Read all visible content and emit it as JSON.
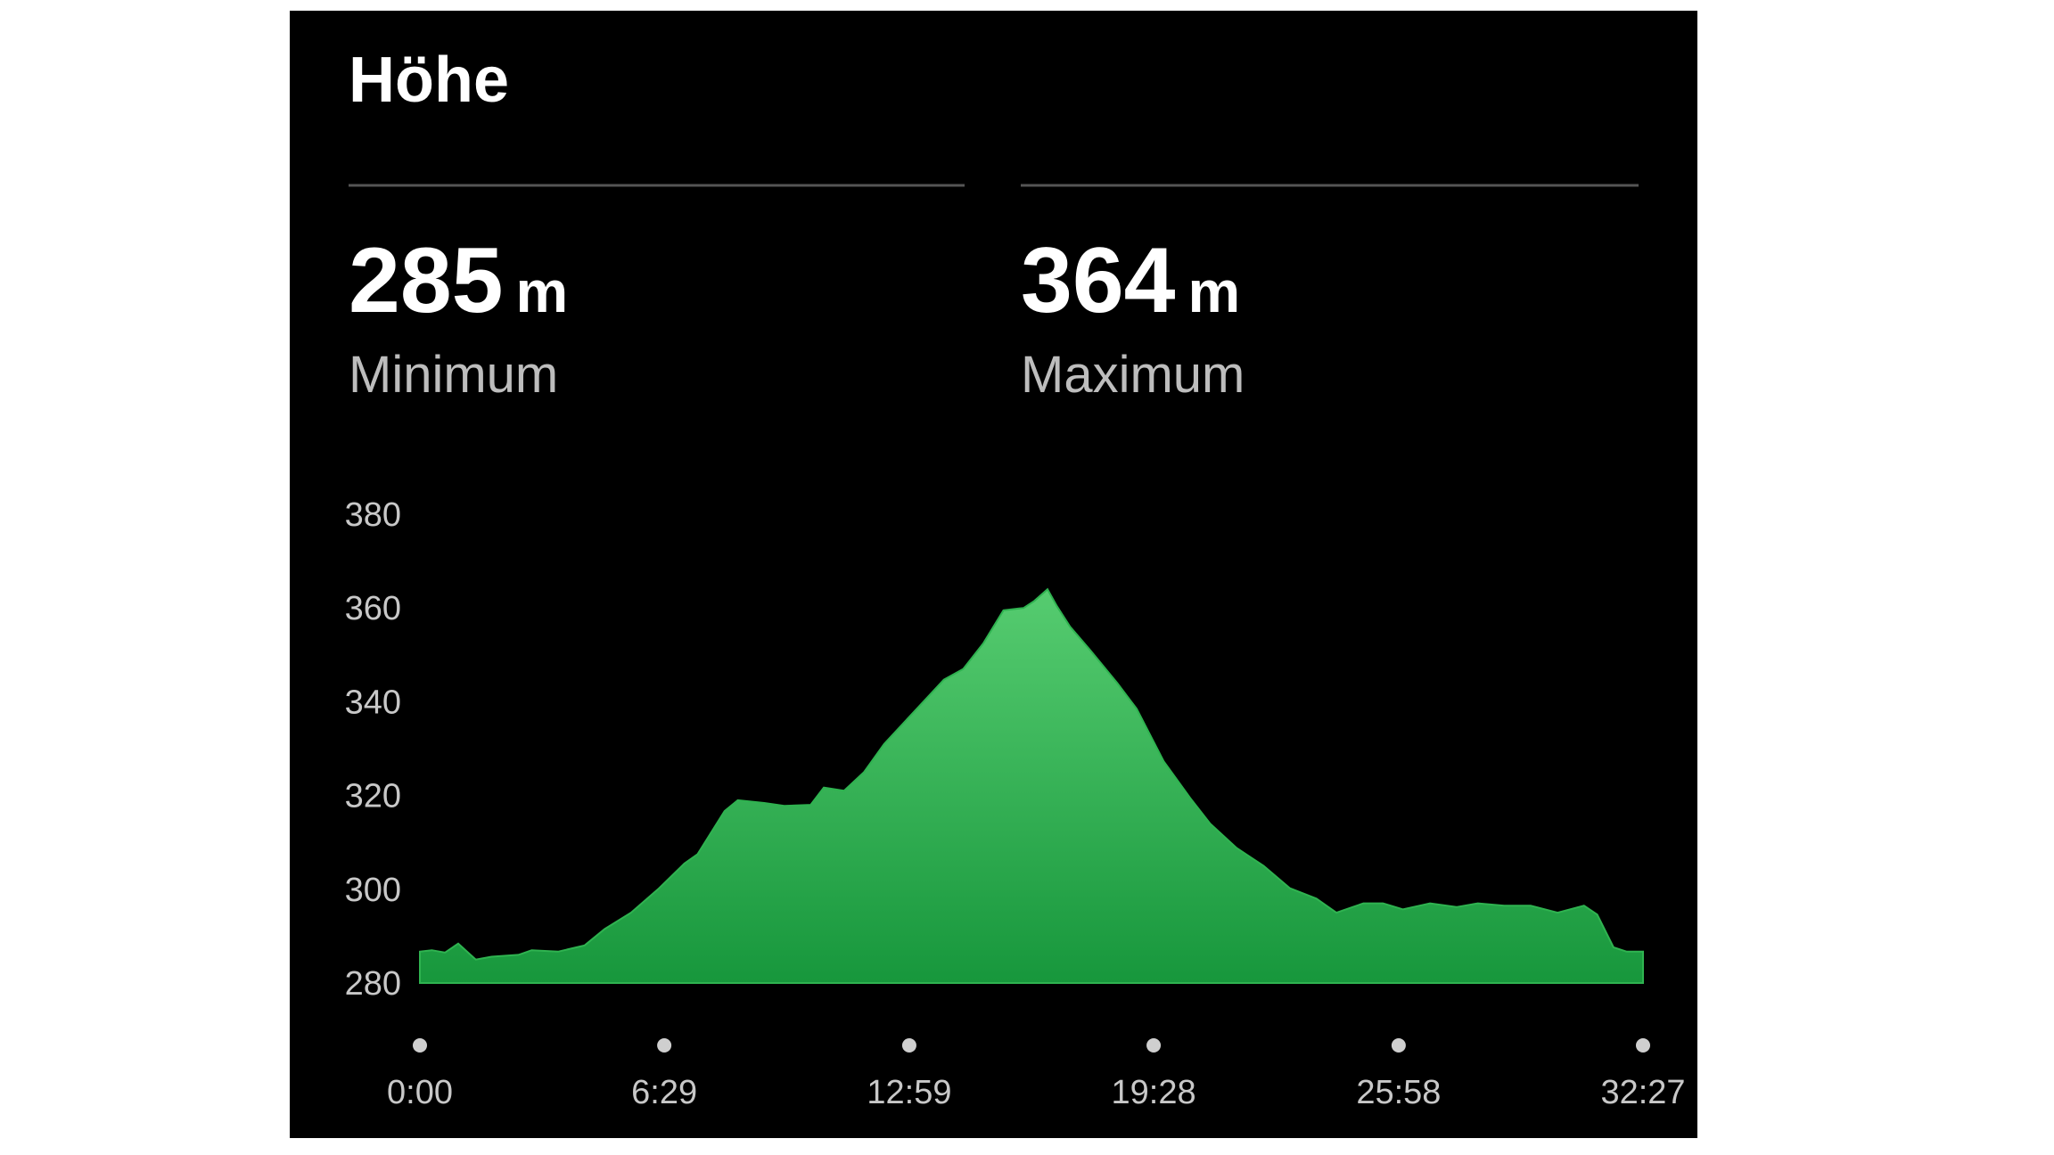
{
  "header": {
    "title": "Höhe"
  },
  "stats": [
    {
      "value": "285",
      "unit": "m",
      "label": "Minimum"
    },
    {
      "value": "364",
      "unit": "m",
      "label": "Maximum"
    }
  ],
  "chart_data": {
    "type": "area",
    "color": "#2fb350",
    "x": [
      0,
      19,
      40,
      61,
      89,
      114,
      157,
      178,
      220,
      262,
      294,
      336,
      379,
      421,
      442,
      485,
      506,
      548,
      580,
      622,
      643,
      675,
      707,
      739,
      791,
      834,
      865,
      897,
      929,
      961,
      978,
      999,
      1014,
      1035,
      1067,
      1110,
      1141,
      1184,
      1226,
      1258,
      1300,
      1343,
      1385,
      1427,
      1459,
      1502,
      1533,
      1565,
      1608,
      1650,
      1684,
      1726,
      1768,
      1811,
      1853,
      1874,
      1900,
      1921,
      1947
    ],
    "values": [
      286.7,
      287,
      286.5,
      288.4,
      285,
      285.6,
      286,
      287,
      286.7,
      288,
      291.5,
      295,
      300,
      305.5,
      307.5,
      316.7,
      319,
      318.4,
      317.8,
      318,
      321.7,
      321,
      325,
      331,
      338.5,
      344.7,
      347,
      352.5,
      359.5,
      360,
      361.5,
      364,
      360.4,
      356,
      351,
      344,
      338.5,
      327.3,
      319.5,
      314,
      308.8,
      305,
      300.2,
      298,
      295,
      297,
      297,
      295.7,
      297,
      296.2,
      297,
      296.5,
      296.5,
      295,
      296.5,
      294.6,
      287.6,
      286.7,
      286.7
    ],
    "xlim": [
      0,
      1947
    ],
    "xticks": [
      {
        "value": 0,
        "label": "0:00"
      },
      {
        "value": 389,
        "label": "6:29"
      },
      {
        "value": 779,
        "label": "12:59"
      },
      {
        "value": 1168,
        "label": "19:28"
      },
      {
        "value": 1558,
        "label": "25:58"
      },
      {
        "value": 1947,
        "label": "32:27"
      }
    ],
    "ylim": [
      280,
      380
    ],
    "yticks": [
      280,
      300,
      320,
      340,
      360,
      380
    ]
  }
}
